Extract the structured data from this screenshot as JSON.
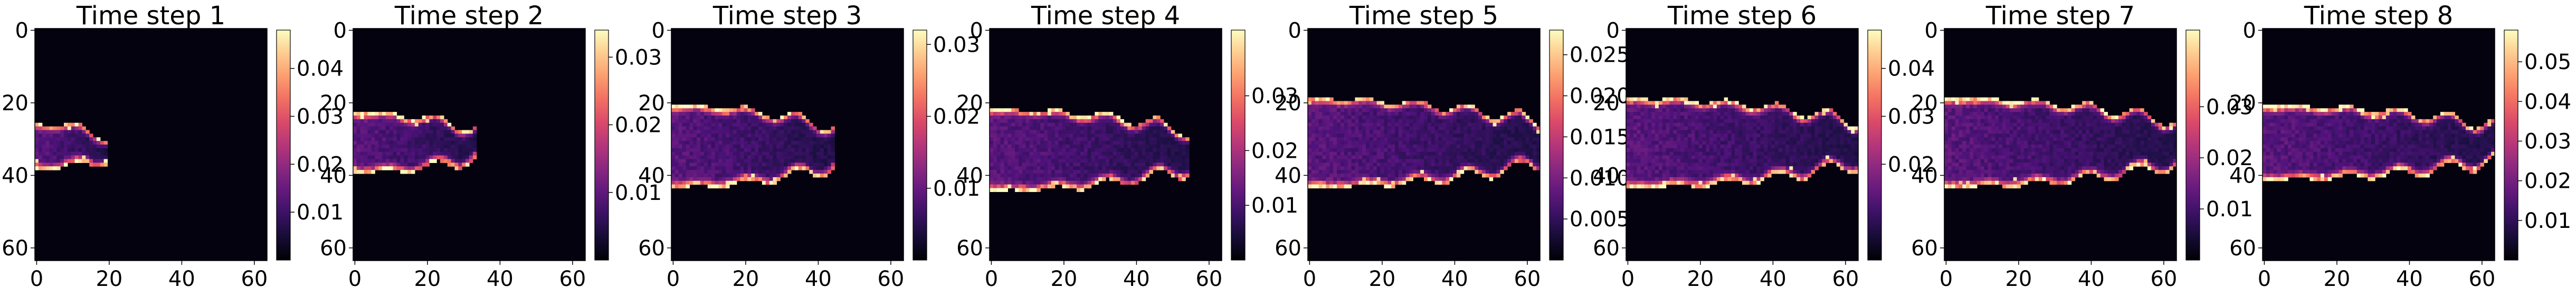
{
  "chart_data": [
    {
      "type": "heatmap",
      "title": "Time step 1",
      "grid_size": [
        64,
        64
      ],
      "x_ticks": [
        "0",
        "20",
        "40",
        "60"
      ],
      "y_ticks": [
        "0",
        "20",
        "40",
        "60"
      ],
      "tip_x": 19,
      "x_start": 0,
      "centerline_y": 32,
      "half_width": 5,
      "noise_level": 0.15,
      "colorbar": {
        "min": 0.0,
        "max": 0.048,
        "ticks": [
          "0.01",
          "0.02",
          "0.03",
          "0.04"
        ],
        "tick_values": [
          0.01,
          0.02,
          0.03,
          0.04
        ]
      },
      "colormap": "magma"
    },
    {
      "type": "heatmap",
      "title": "Time step 2",
      "grid_size": [
        64,
        64
      ],
      "x_ticks": [
        "0",
        "20",
        "40",
        "60"
      ],
      "y_ticks": [
        "0",
        "20",
        "40",
        "60"
      ],
      "tip_x": 33,
      "x_start": 0,
      "centerline_y": 31,
      "half_width": 7,
      "noise_level": 0.15,
      "colorbar": {
        "min": 0.0,
        "max": 0.034,
        "ticks": [
          "0.01",
          "0.02",
          "0.03"
        ],
        "tick_values": [
          0.01,
          0.02,
          0.03
        ]
      },
      "colormap": "magma"
    },
    {
      "type": "heatmap",
      "title": "Time step 3",
      "grid_size": [
        64,
        64
      ],
      "x_ticks": [
        "0",
        "20",
        "40",
        "60"
      ],
      "y_ticks": [
        "0",
        "20",
        "40",
        "60"
      ],
      "tip_x": 44,
      "x_start": 0,
      "centerline_y": 32,
      "half_width": 10,
      "noise_level": 0.15,
      "colorbar": {
        "min": 0.0,
        "max": 0.032,
        "ticks": [
          "0.01",
          "0.02",
          "0.03"
        ],
        "tick_values": [
          0.01,
          0.02,
          0.03
        ]
      },
      "colormap": "magma"
    },
    {
      "type": "heatmap",
      "title": "Time step 4",
      "grid_size": [
        64,
        64
      ],
      "x_ticks": [
        "0",
        "20",
        "40",
        "60"
      ],
      "y_ticks": [
        "0",
        "20",
        "40",
        "60"
      ],
      "tip_x": 54,
      "x_start": 0,
      "centerline_y": 33,
      "half_width": 10,
      "noise_level": 0.15,
      "colorbar": {
        "min": 0.0,
        "max": 0.042,
        "ticks": [
          "0.01",
          "0.02",
          "0.03"
        ],
        "tick_values": [
          0.01,
          0.02,
          0.03
        ]
      },
      "colormap": "magma"
    },
    {
      "type": "heatmap",
      "title": "Time step 5",
      "grid_size": [
        64,
        64
      ],
      "x_ticks": [
        "0",
        "20",
        "40",
        "60"
      ],
      "y_ticks": [
        "0",
        "20",
        "40",
        "60"
      ],
      "tip_x": 63,
      "x_start": 0,
      "centerline_y": 31,
      "half_width": 11,
      "noise_level": 0.2,
      "colorbar": {
        "min": 0.0,
        "max": 0.028,
        "ticks": [
          "0.005",
          "0.010",
          "0.015",
          "0.020",
          "0.025"
        ],
        "tick_values": [
          0.005,
          0.01,
          0.015,
          0.02,
          0.025
        ]
      },
      "colormap": "magma"
    },
    {
      "type": "heatmap",
      "title": "Time step 6",
      "grid_size": [
        64,
        64
      ],
      "x_ticks": [
        "0",
        "20",
        "40",
        "60"
      ],
      "y_ticks": [
        "0",
        "20",
        "40",
        "60"
      ],
      "tip_x": 63,
      "x_start": 0,
      "centerline_y": 31,
      "half_width": 11,
      "noise_level": 0.2,
      "colorbar": {
        "min": 0.0,
        "max": 0.048,
        "ticks": [
          "0.02",
          "0.03",
          "0.04"
        ],
        "tick_values": [
          0.02,
          0.03,
          0.04
        ]
      },
      "colormap": "magma"
    },
    {
      "type": "heatmap",
      "title": "Time step 7",
      "grid_size": [
        64,
        64
      ],
      "x_ticks": [
        "0",
        "20",
        "40",
        "60"
      ],
      "y_ticks": [
        "0",
        "20",
        "40",
        "60"
      ],
      "tip_x": 63,
      "x_start": 0,
      "centerline_y": 31,
      "half_width": 11,
      "noise_level": 0.2,
      "colorbar": {
        "min": 0.0,
        "max": 0.045,
        "ticks": [
          "0.01",
          "0.02",
          "0.03"
        ],
        "tick_values": [
          0.01,
          0.02,
          0.03
        ]
      },
      "colormap": "magma"
    },
    {
      "type": "heatmap",
      "title": "Time step 8",
      "grid_size": [
        64,
        64
      ],
      "x_ticks": [
        "0",
        "20",
        "40",
        "60"
      ],
      "y_ticks": [
        "0",
        "20",
        "40",
        "60"
      ],
      "tip_x": 63,
      "x_start": 0,
      "centerline_y": 31,
      "half_width": 9,
      "noise_level": 0.2,
      "colorbar": {
        "min": 0.0,
        "max": 0.058,
        "ticks": [
          "0.01",
          "0.02",
          "0.03",
          "0.04",
          "0.05"
        ],
        "tick_values": [
          0.01,
          0.02,
          0.03,
          0.04,
          0.05
        ]
      },
      "colormap": "magma"
    }
  ]
}
